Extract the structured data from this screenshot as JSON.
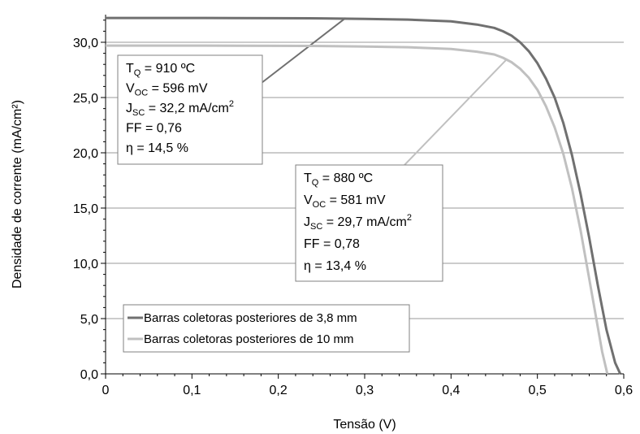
{
  "chart_data": {
    "type": "line",
    "xlabel": "Tensão (V)",
    "ylabel": "Densidade de corrente (mA/cm²)",
    "xlim": [
      0,
      0.6
    ],
    "ylim": [
      0,
      32.5
    ],
    "xticks": [
      "0",
      "0,1",
      "0,2",
      "0,3",
      "0,4",
      "0,5",
      "0,6"
    ],
    "xtick_values": [
      0,
      0.1,
      0.2,
      0.3,
      0.4,
      0.5,
      0.6
    ],
    "yticks": [
      "0,0",
      "5,0",
      "10,0",
      "15,0",
      "20,0",
      "25,0",
      "30,0"
    ],
    "ytick_values": [
      0,
      5,
      10,
      15,
      20,
      25,
      30
    ],
    "grid": "horizontal",
    "legend_position": "bottom-left",
    "series": [
      {
        "name": "Barras coletoras posteriores de 3,8 mm",
        "color": "#707070",
        "x": [
          0,
          0.05,
          0.1,
          0.15,
          0.2,
          0.25,
          0.3,
          0.35,
          0.4,
          0.43,
          0.45,
          0.46,
          0.47,
          0.48,
          0.49,
          0.5,
          0.51,
          0.52,
          0.53,
          0.54,
          0.55,
          0.56,
          0.57,
          0.58,
          0.59,
          0.596
        ],
        "y": [
          32.2,
          32.2,
          32.2,
          32.19,
          32.18,
          32.16,
          32.12,
          32.05,
          31.9,
          31.6,
          31.3,
          31.0,
          30.6,
          30.0,
          29.2,
          28.1,
          26.7,
          25.0,
          22.7,
          19.8,
          16.3,
          12.3,
          8.0,
          4.0,
          1.0,
          0
        ]
      },
      {
        "name": "Barras coletoras posteriores de 10 mm",
        "color": "#c0c0c0",
        "x": [
          0,
          0.05,
          0.1,
          0.15,
          0.2,
          0.25,
          0.3,
          0.35,
          0.4,
          0.43,
          0.45,
          0.46,
          0.47,
          0.48,
          0.49,
          0.5,
          0.51,
          0.52,
          0.53,
          0.54,
          0.55,
          0.56,
          0.57,
          0.575,
          0.581
        ],
        "y": [
          29.7,
          29.7,
          29.7,
          29.69,
          29.68,
          29.66,
          29.62,
          29.55,
          29.4,
          29.15,
          28.9,
          28.6,
          28.2,
          27.6,
          26.8,
          25.7,
          24.2,
          22.3,
          19.9,
          16.8,
          13.0,
          8.6,
          4.2,
          2.0,
          0
        ]
      }
    ],
    "annotations": [
      {
        "id": "box-910",
        "lines": [
          {
            "main": "T",
            "sub": "Q",
            "rest": " = 910 ºC"
          },
          {
            "main": "V",
            "sub": "OC",
            "rest": " = 596 mV"
          },
          {
            "main": "J",
            "sub": "SC",
            "rest": " = 32,2 mA/cm",
            "sup": "2"
          },
          {
            "main": "FF = 0,76"
          },
          {
            "main": "η = 14,5 %"
          }
        ],
        "pointer_to": {
          "x": 0.278,
          "y": 32.2
        },
        "pointer_color": "#707070"
      },
      {
        "id": "box-880",
        "lines": [
          {
            "main": "T",
            "sub": "Q",
            "rest": " = 880 ºC"
          },
          {
            "main": "V",
            "sub": "OC",
            "rest": " = 581 mV"
          },
          {
            "main": "J",
            "sub": "SC",
            "rest": " = 29,7 mA/cm",
            "sup": "2"
          },
          {
            "main": "FF = 0,78"
          },
          {
            "main": "η = 13,4 %"
          }
        ],
        "pointer_to": {
          "x": 0.465,
          "y": 28.5
        },
        "pointer_color": "#c0c0c0"
      }
    ]
  }
}
